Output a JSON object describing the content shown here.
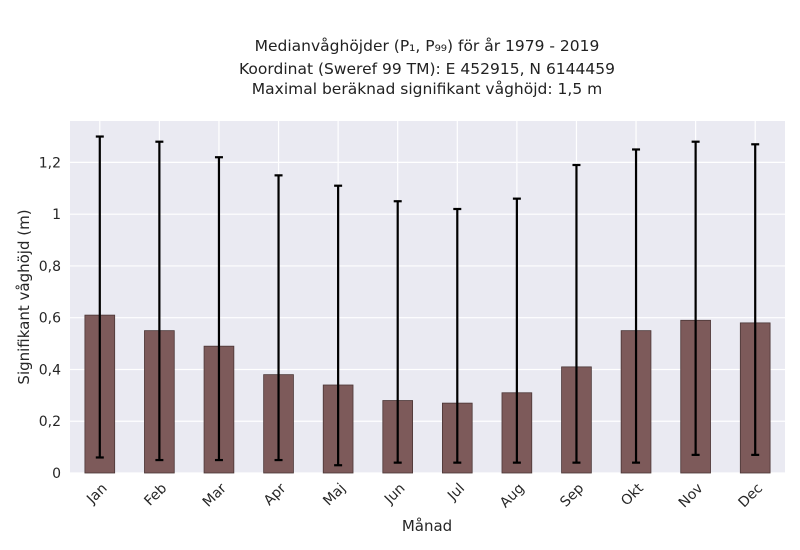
{
  "chart_data": {
    "type": "bar",
    "title_lines": [
      "Medianvåghöjder (P₁, P₉₉) för år 1979 - 2019",
      "Koordinat (Sweref 99 TM): E 452915, N 6144459",
      "Maximal beräknad signifikant våghöjd: 1,5 m"
    ],
    "xlabel": "Månad",
    "ylabel": "Signifikant våghöjd (m)",
    "categories": [
      "Jan",
      "Feb",
      "Mar",
      "Apr",
      "Maj",
      "Jun",
      "Jul",
      "Aug",
      "Sep",
      "Okt",
      "Nov",
      "Dec"
    ],
    "values": [
      0.61,
      0.55,
      0.49,
      0.38,
      0.34,
      0.28,
      0.27,
      0.31,
      0.41,
      0.55,
      0.59,
      0.58
    ],
    "p1": [
      0.06,
      0.05,
      0.05,
      0.05,
      0.03,
      0.04,
      0.04,
      0.04,
      0.04,
      0.04,
      0.07,
      0.07
    ],
    "p99": [
      1.3,
      1.28,
      1.22,
      1.15,
      1.11,
      1.05,
      1.02,
      1.06,
      1.19,
      1.25,
      1.28,
      1.27
    ],
    "yticks": [
      0,
      0.2,
      0.4,
      0.6,
      0.8,
      1,
      1.2
    ],
    "ytick_labels": [
      "0",
      "0,2",
      "0,4",
      "0,6",
      "0,8",
      "1",
      "1,2"
    ],
    "ylim": [
      0,
      1.36
    ],
    "grid": true,
    "colors": {
      "bar": "#7d5a5a",
      "bar_edge": "#4a3535",
      "errorbar": "#000000",
      "plot_bg": "#eaeaf2",
      "grid": "#ffffff"
    }
  }
}
